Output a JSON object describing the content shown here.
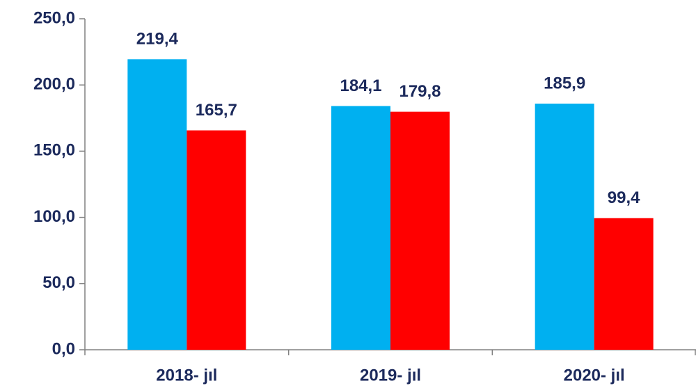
{
  "chart_data": {
    "type": "bar",
    "categories": [
      "2018- jıl",
      "2019- jıl",
      "2020- jıl"
    ],
    "series": [
      {
        "color": "#00b0f0",
        "values": [
          219.4,
          184.1,
          185.9
        ],
        "value_labels": [
          "219,4",
          "184,1",
          "185,9"
        ]
      },
      {
        "color": "#ff0000",
        "values": [
          165.7,
          179.8,
          99.4
        ],
        "value_labels": [
          "165,7",
          "179,8",
          "99,4"
        ]
      }
    ],
    "ylim": [
      0,
      250
    ],
    "yticks": [
      {
        "value": 0,
        "label": "0,0"
      },
      {
        "value": 50,
        "label": "50,0"
      },
      {
        "value": 100,
        "label": "100,0"
      },
      {
        "value": 150,
        "label": "150,0"
      },
      {
        "value": 200,
        "label": "200,0"
      },
      {
        "value": 250,
        "label": "250,0"
      }
    ],
    "grid": false
  }
}
